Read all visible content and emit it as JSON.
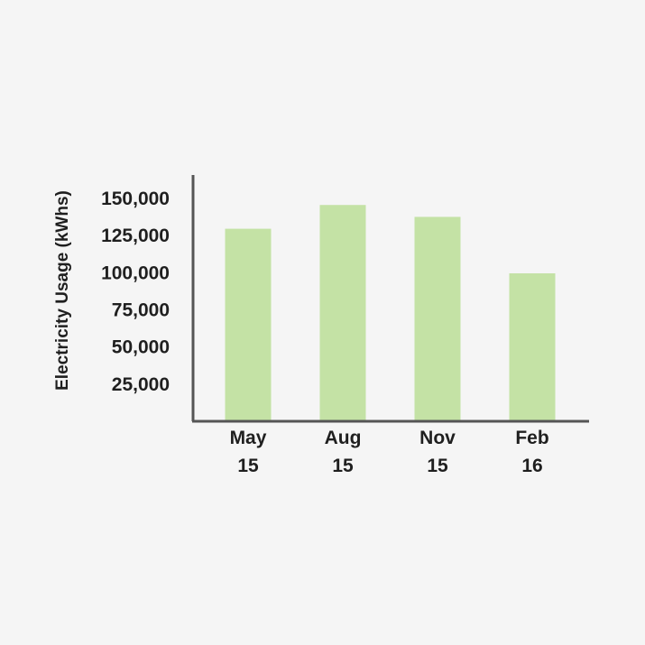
{
  "chart_data": {
    "type": "bar",
    "categories": [
      [
        "May",
        "15"
      ],
      [
        "Aug",
        "15"
      ],
      [
        "Nov",
        "15"
      ],
      [
        "Feb",
        "16"
      ]
    ],
    "values": [
      129000,
      145000,
      137000,
      99000
    ],
    "ylabel": "Electricity Usage (kWhs)",
    "xlabel": "",
    "ylim": [
      0,
      150000
    ],
    "yticks": [
      "150,000",
      "125,000",
      "100,000",
      "75,000",
      "50,000",
      "25,000"
    ],
    "ytick_values": [
      150000,
      125000,
      100000,
      75000,
      50000,
      25000
    ],
    "grid": false,
    "legend": "none",
    "bar_color": "#c4e2a5",
    "axis_color": "#555555"
  }
}
